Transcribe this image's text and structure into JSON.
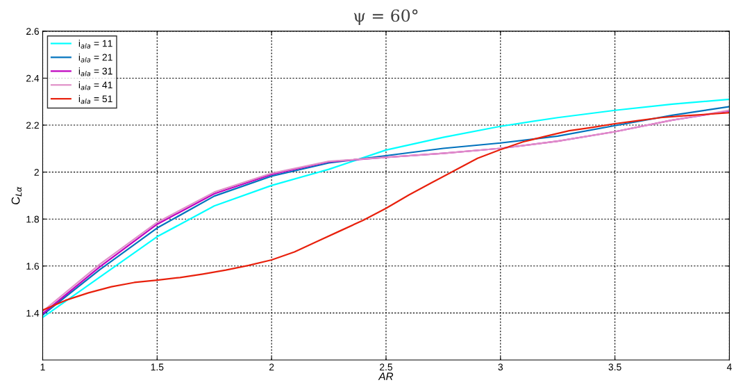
{
  "chart_data": {
    "type": "line",
    "title": "ψ = 60°",
    "xlabel": "AR",
    "ylabel": "C$_{Lα}$",
    "xlim": [
      1,
      4
    ],
    "xticks": [
      1,
      1.5,
      2,
      2.5,
      3,
      3.5,
      4
    ],
    "ylim": [
      1.2,
      2.6
    ],
    "yticks": [
      1.4,
      1.6,
      1.8,
      2,
      2.2,
      2.4,
      2.6
    ],
    "grid": true,
    "legend": "top left",
    "line_style": "solid",
    "marker": "none",
    "series": [
      {
        "name": "i$_{ala}$ = 11",
        "color": "#00ffff",
        "x": [
          1,
          1.25,
          1.5,
          1.75,
          2,
          2.25,
          2.5,
          2.75,
          3,
          3.25,
          3.5,
          3.75,
          4
        ],
        "values": [
          1.381,
          1.553,
          1.725,
          1.856,
          1.943,
          2.012,
          2.094,
          2.148,
          2.195,
          2.232,
          2.263,
          2.289,
          2.31
        ]
      },
      {
        "name": "i$_{ala}$ = 21",
        "color": "#0072bd",
        "x": [
          1,
          1.25,
          1.5,
          1.75,
          2,
          2.25,
          2.5,
          2.75,
          3,
          3.25,
          3.5,
          3.75,
          4
        ],
        "values": [
          1.392,
          1.585,
          1.762,
          1.898,
          1.983,
          2.039,
          2.07,
          2.101,
          2.124,
          2.153,
          2.198,
          2.242,
          2.279
        ]
      },
      {
        "name": "i$_{ala}$ = 31",
        "color": "#bf00bf",
        "x": [
          1,
          1.25,
          1.5,
          1.75,
          2,
          2.25,
          2.5,
          2.75,
          3,
          3.25,
          3.5,
          3.75,
          4
        ],
        "values": [
          1.397,
          1.597,
          1.778,
          1.908,
          1.99,
          2.044,
          2.063,
          2.08,
          2.101,
          2.132,
          2.172,
          2.221,
          2.261
        ]
      },
      {
        "name": "i$_{ala}$ = 41",
        "color": "#e090c8",
        "x": [
          1,
          1.25,
          1.5,
          1.75,
          2,
          2.25,
          2.5,
          2.75,
          3,
          3.25,
          3.5,
          3.75,
          4
        ],
        "values": [
          1.407,
          1.608,
          1.786,
          1.915,
          1.995,
          2.046,
          2.063,
          2.08,
          2.101,
          2.132,
          2.172,
          2.221,
          2.263
        ]
      },
      {
        "name": "i$_{ala}$ = 51",
        "color": "#e8200c",
        "x": [
          1,
          1.1,
          1.2,
          1.3,
          1.4,
          1.5,
          1.6,
          1.7,
          1.8,
          1.9,
          2,
          2.1,
          2.2,
          2.3,
          2.4,
          2.5,
          2.6,
          2.7,
          2.8,
          2.9,
          3,
          3.1,
          3.2,
          3.3,
          3.4,
          3.5,
          3.6,
          3.7,
          3.8,
          3.9,
          4
        ],
        "values": [
          1.412,
          1.454,
          1.486,
          1.512,
          1.53,
          1.54,
          1.551,
          1.566,
          1.583,
          1.603,
          1.626,
          1.66,
          1.705,
          1.75,
          1.795,
          1.846,
          1.903,
          1.955,
          2.007,
          2.059,
          2.096,
          2.129,
          2.153,
          2.176,
          2.19,
          2.206,
          2.219,
          2.232,
          2.24,
          2.246,
          2.253
        ]
      }
    ]
  }
}
